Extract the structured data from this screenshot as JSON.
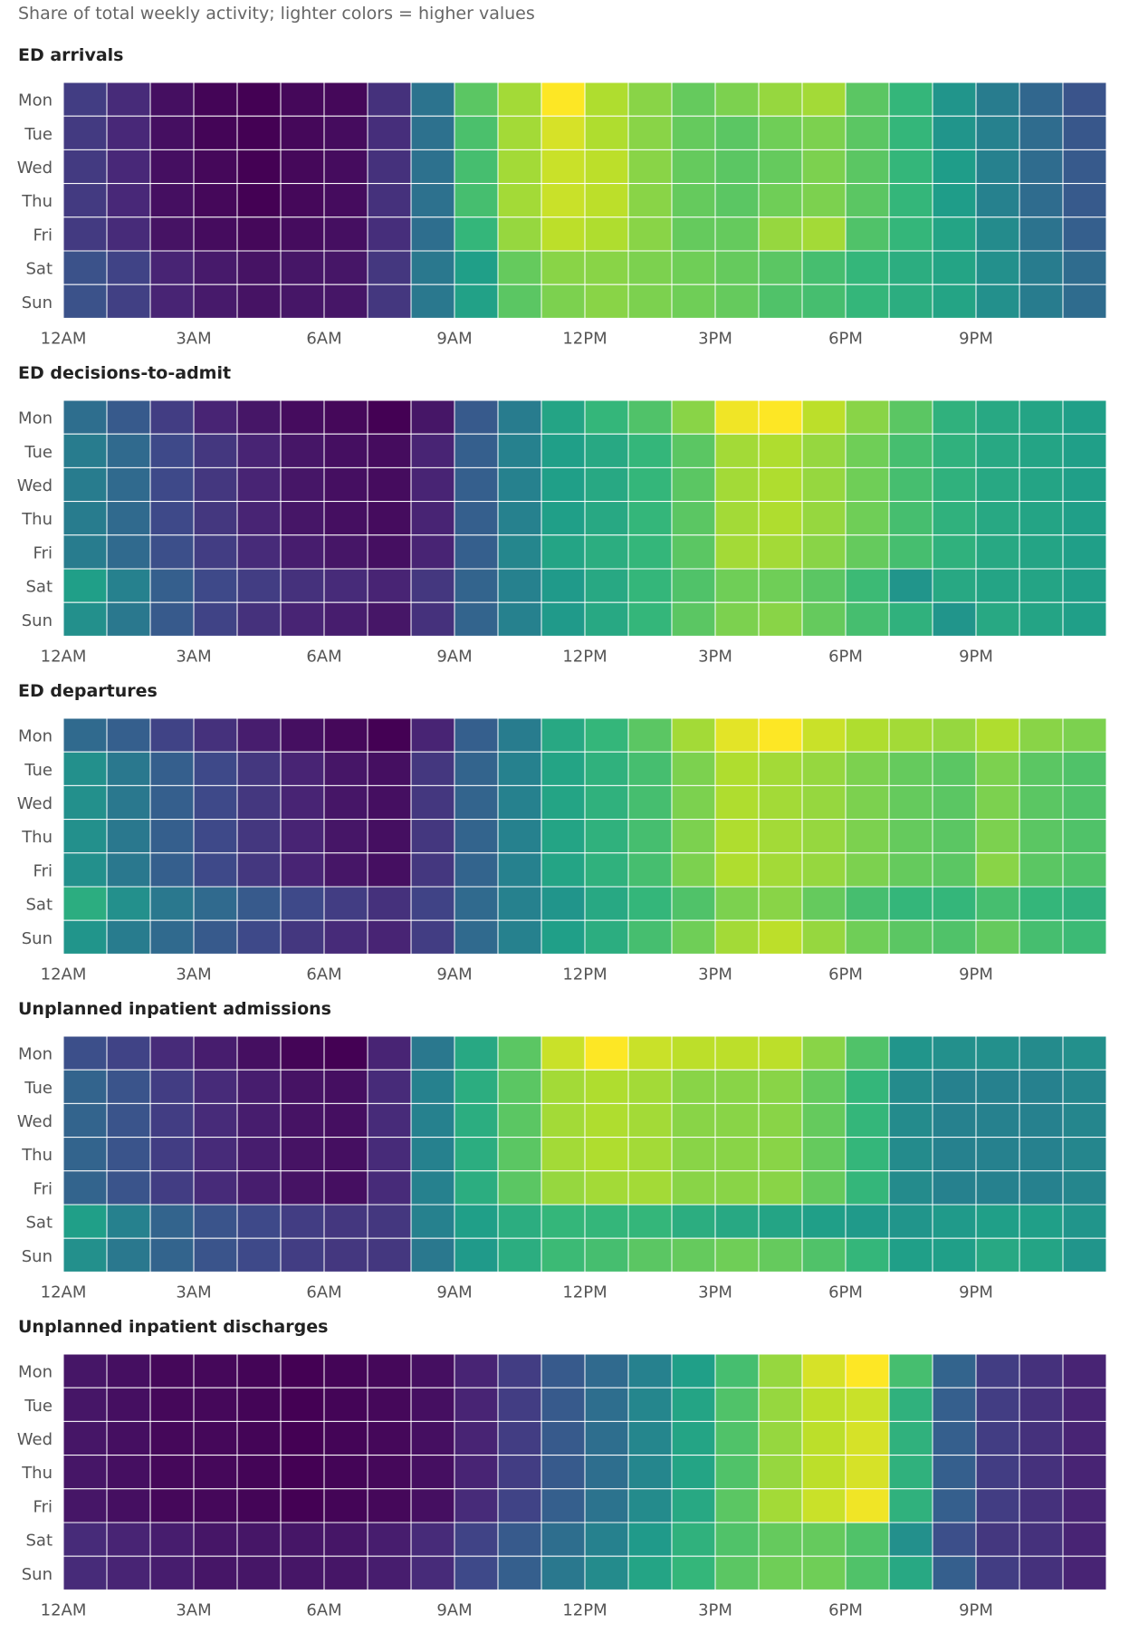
{
  "subtitle": "Share of total weekly activity; lighter colors = higher values",
  "color_scale": {
    "name": "viridis",
    "stops": [
      "#440154",
      "#482878",
      "#3e4a89",
      "#31688e",
      "#26828e",
      "#1f9e89",
      "#35b779",
      "#6ece58",
      "#b5de2b",
      "#fde725"
    ]
  },
  "chart_data": [
    {
      "type": "heatmap",
      "title": "ED arrivals",
      "y": [
        "Mon",
        "Tue",
        "Wed",
        "Thu",
        "Fri",
        "Sat",
        "Sun"
      ],
      "x_tick_labels": [
        "12AM",
        "3AM",
        "6AM",
        "9AM",
        "12PM",
        "3PM",
        "6PM",
        "9PM"
      ],
      "x_tick_hours": [
        0,
        3,
        6,
        9,
        12,
        15,
        18,
        21
      ],
      "values": [
        [
          0.18,
          0.12,
          0.04,
          0.01,
          0.0,
          0.02,
          0.02,
          0.14,
          0.38,
          0.74,
          0.86,
          1.0,
          0.88,
          0.82,
          0.76,
          0.8,
          0.84,
          0.86,
          0.74,
          0.66,
          0.52,
          0.42,
          0.33,
          0.26
        ],
        [
          0.17,
          0.11,
          0.04,
          0.01,
          0.0,
          0.02,
          0.03,
          0.13,
          0.37,
          0.71,
          0.86,
          0.94,
          0.88,
          0.82,
          0.76,
          0.74,
          0.78,
          0.8,
          0.74,
          0.66,
          0.52,
          0.44,
          0.35,
          0.27
        ],
        [
          0.17,
          0.11,
          0.04,
          0.02,
          0.0,
          0.02,
          0.03,
          0.14,
          0.37,
          0.7,
          0.86,
          0.92,
          0.9,
          0.82,
          0.76,
          0.74,
          0.76,
          0.8,
          0.74,
          0.66,
          0.55,
          0.44,
          0.35,
          0.28
        ],
        [
          0.17,
          0.11,
          0.04,
          0.02,
          0.0,
          0.02,
          0.03,
          0.14,
          0.37,
          0.7,
          0.86,
          0.92,
          0.9,
          0.82,
          0.76,
          0.74,
          0.78,
          0.8,
          0.74,
          0.66,
          0.55,
          0.44,
          0.35,
          0.28
        ],
        [
          0.17,
          0.12,
          0.05,
          0.03,
          0.02,
          0.03,
          0.04,
          0.13,
          0.36,
          0.66,
          0.84,
          0.9,
          0.88,
          0.82,
          0.76,
          0.76,
          0.84,
          0.86,
          0.72,
          0.66,
          0.58,
          0.48,
          0.38,
          0.3
        ],
        [
          0.25,
          0.2,
          0.1,
          0.07,
          0.05,
          0.06,
          0.06,
          0.16,
          0.4,
          0.56,
          0.76,
          0.82,
          0.82,
          0.8,
          0.78,
          0.76,
          0.74,
          0.7,
          0.66,
          0.62,
          0.58,
          0.5,
          0.42,
          0.35
        ],
        [
          0.25,
          0.19,
          0.1,
          0.07,
          0.05,
          0.06,
          0.06,
          0.16,
          0.4,
          0.57,
          0.74,
          0.8,
          0.82,
          0.8,
          0.78,
          0.76,
          0.72,
          0.7,
          0.66,
          0.62,
          0.58,
          0.5,
          0.42,
          0.35
        ]
      ]
    },
    {
      "type": "heatmap",
      "title": "ED decisions-to-admit",
      "y": [
        "Mon",
        "Tue",
        "Wed",
        "Thu",
        "Fri",
        "Sat",
        "Sun"
      ],
      "x_tick_labels": [
        "12AM",
        "3AM",
        "6AM",
        "9AM",
        "12PM",
        "3PM",
        "6PM",
        "9PM"
      ],
      "x_tick_hours": [
        0,
        3,
        6,
        9,
        12,
        15,
        18,
        21
      ],
      "values": [
        [
          0.36,
          0.28,
          0.18,
          0.1,
          0.06,
          0.03,
          0.02,
          0.0,
          0.06,
          0.28,
          0.42,
          0.58,
          0.66,
          0.72,
          0.82,
          0.98,
          1.0,
          0.9,
          0.82,
          0.74,
          0.64,
          0.6,
          0.58,
          0.56
        ],
        [
          0.42,
          0.34,
          0.22,
          0.16,
          0.1,
          0.06,
          0.04,
          0.03,
          0.1,
          0.3,
          0.44,
          0.56,
          0.6,
          0.66,
          0.74,
          0.86,
          0.88,
          0.84,
          0.78,
          0.7,
          0.64,
          0.6,
          0.58,
          0.56
        ],
        [
          0.42,
          0.34,
          0.22,
          0.16,
          0.1,
          0.06,
          0.04,
          0.03,
          0.1,
          0.3,
          0.44,
          0.56,
          0.6,
          0.66,
          0.74,
          0.86,
          0.88,
          0.84,
          0.78,
          0.7,
          0.64,
          0.6,
          0.58,
          0.56
        ],
        [
          0.42,
          0.34,
          0.22,
          0.16,
          0.1,
          0.06,
          0.04,
          0.03,
          0.1,
          0.3,
          0.44,
          0.56,
          0.6,
          0.66,
          0.74,
          0.86,
          0.88,
          0.84,
          0.78,
          0.7,
          0.64,
          0.6,
          0.58,
          0.56
        ],
        [
          0.42,
          0.34,
          0.24,
          0.18,
          0.12,
          0.08,
          0.06,
          0.04,
          0.1,
          0.3,
          0.46,
          0.58,
          0.62,
          0.66,
          0.74,
          0.86,
          0.86,
          0.82,
          0.76,
          0.7,
          0.64,
          0.6,
          0.58,
          0.56
        ],
        [
          0.56,
          0.44,
          0.3,
          0.22,
          0.18,
          0.14,
          0.12,
          0.1,
          0.16,
          0.32,
          0.44,
          0.54,
          0.6,
          0.66,
          0.72,
          0.78,
          0.78,
          0.74,
          0.68,
          0.52,
          0.6,
          0.58,
          0.58,
          0.56
        ],
        [
          0.5,
          0.4,
          0.28,
          0.2,
          0.14,
          0.1,
          0.08,
          0.06,
          0.14,
          0.32,
          0.44,
          0.54,
          0.6,
          0.66,
          0.74,
          0.8,
          0.82,
          0.76,
          0.7,
          0.64,
          0.52,
          0.6,
          0.58,
          0.56
        ]
      ]
    },
    {
      "type": "heatmap",
      "title": "ED departures",
      "y": [
        "Mon",
        "Tue",
        "Wed",
        "Thu",
        "Fri",
        "Sat",
        "Sun"
      ],
      "x_tick_labels": [
        "12AM",
        "3AM",
        "6AM",
        "9AM",
        "12PM",
        "3PM",
        "6PM",
        "9PM"
      ],
      "x_tick_hours": [
        0,
        3,
        6,
        9,
        12,
        15,
        18,
        21
      ],
      "values": [
        [
          0.34,
          0.3,
          0.2,
          0.14,
          0.08,
          0.04,
          0.02,
          0.0,
          0.1,
          0.3,
          0.42,
          0.6,
          0.66,
          0.74,
          0.86,
          0.96,
          1.0,
          0.92,
          0.88,
          0.86,
          0.84,
          0.88,
          0.82,
          0.8
        ],
        [
          0.5,
          0.4,
          0.3,
          0.22,
          0.16,
          0.1,
          0.06,
          0.04,
          0.16,
          0.32,
          0.44,
          0.58,
          0.64,
          0.7,
          0.8,
          0.88,
          0.86,
          0.84,
          0.8,
          0.76,
          0.74,
          0.8,
          0.74,
          0.72
        ],
        [
          0.5,
          0.4,
          0.3,
          0.22,
          0.16,
          0.1,
          0.06,
          0.04,
          0.16,
          0.32,
          0.44,
          0.58,
          0.64,
          0.7,
          0.8,
          0.88,
          0.86,
          0.84,
          0.8,
          0.76,
          0.74,
          0.8,
          0.74,
          0.72
        ],
        [
          0.5,
          0.4,
          0.3,
          0.22,
          0.16,
          0.1,
          0.06,
          0.04,
          0.16,
          0.32,
          0.44,
          0.58,
          0.64,
          0.7,
          0.8,
          0.88,
          0.86,
          0.84,
          0.8,
          0.76,
          0.74,
          0.8,
          0.74,
          0.72
        ],
        [
          0.5,
          0.4,
          0.3,
          0.22,
          0.16,
          0.1,
          0.06,
          0.04,
          0.16,
          0.32,
          0.44,
          0.58,
          0.64,
          0.7,
          0.8,
          0.88,
          0.86,
          0.84,
          0.8,
          0.76,
          0.74,
          0.82,
          0.74,
          0.72
        ],
        [
          0.62,
          0.5,
          0.4,
          0.34,
          0.28,
          0.22,
          0.18,
          0.14,
          0.2,
          0.34,
          0.44,
          0.52,
          0.6,
          0.66,
          0.72,
          0.8,
          0.82,
          0.76,
          0.7,
          0.66,
          0.66,
          0.7,
          0.66,
          0.64
        ],
        [
          0.52,
          0.42,
          0.34,
          0.28,
          0.22,
          0.16,
          0.12,
          0.1,
          0.18,
          0.34,
          0.44,
          0.56,
          0.62,
          0.7,
          0.78,
          0.86,
          0.9,
          0.84,
          0.78,
          0.74,
          0.72,
          0.76,
          0.7,
          0.68
        ]
      ]
    },
    {
      "type": "heatmap",
      "title": "Unplanned inpatient admissions",
      "y": [
        "Mon",
        "Tue",
        "Wed",
        "Thu",
        "Fri",
        "Sat",
        "Sun"
      ],
      "x_tick_labels": [
        "12AM",
        "3AM",
        "6AM",
        "9AM",
        "12PM",
        "3PM",
        "6PM",
        "9PM"
      ],
      "x_tick_hours": [
        0,
        3,
        6,
        9,
        12,
        15,
        18,
        21
      ],
      "values": [
        [
          0.24,
          0.2,
          0.12,
          0.08,
          0.04,
          0.01,
          0.0,
          0.1,
          0.4,
          0.6,
          0.74,
          0.92,
          1.0,
          0.92,
          0.9,
          0.9,
          0.9,
          0.82,
          0.72,
          0.52,
          0.5,
          0.5,
          0.48,
          0.5
        ],
        [
          0.32,
          0.26,
          0.18,
          0.12,
          0.08,
          0.05,
          0.04,
          0.12,
          0.44,
          0.62,
          0.74,
          0.86,
          0.88,
          0.86,
          0.82,
          0.82,
          0.82,
          0.76,
          0.66,
          0.48,
          0.44,
          0.44,
          0.44,
          0.46
        ],
        [
          0.32,
          0.26,
          0.18,
          0.12,
          0.08,
          0.05,
          0.04,
          0.12,
          0.44,
          0.62,
          0.74,
          0.86,
          0.88,
          0.86,
          0.82,
          0.82,
          0.82,
          0.76,
          0.66,
          0.48,
          0.44,
          0.44,
          0.44,
          0.46
        ],
        [
          0.32,
          0.26,
          0.18,
          0.12,
          0.08,
          0.05,
          0.04,
          0.12,
          0.44,
          0.62,
          0.74,
          0.86,
          0.88,
          0.86,
          0.82,
          0.82,
          0.82,
          0.76,
          0.66,
          0.48,
          0.44,
          0.44,
          0.44,
          0.46
        ],
        [
          0.32,
          0.26,
          0.18,
          0.12,
          0.08,
          0.05,
          0.04,
          0.12,
          0.44,
          0.62,
          0.74,
          0.84,
          0.86,
          0.86,
          0.82,
          0.82,
          0.82,
          0.76,
          0.66,
          0.48,
          0.44,
          0.44,
          0.44,
          0.46
        ],
        [
          0.56,
          0.44,
          0.32,
          0.26,
          0.22,
          0.18,
          0.16,
          0.16,
          0.44,
          0.56,
          0.62,
          0.66,
          0.66,
          0.66,
          0.62,
          0.6,
          0.58,
          0.56,
          0.54,
          0.52,
          0.54,
          0.56,
          0.56,
          0.52
        ],
        [
          0.5,
          0.4,
          0.32,
          0.26,
          0.22,
          0.18,
          0.16,
          0.16,
          0.4,
          0.54,
          0.62,
          0.68,
          0.7,
          0.74,
          0.76,
          0.78,
          0.76,
          0.72,
          0.66,
          0.56,
          0.56,
          0.6,
          0.58,
          0.52
        ]
      ]
    },
    {
      "type": "heatmap",
      "title": "Unplanned inpatient discharges",
      "y": [
        "Mon",
        "Tue",
        "Wed",
        "Thu",
        "Fri",
        "Sat",
        "Sun"
      ],
      "x_tick_labels": [
        "12AM",
        "3AM",
        "6AM",
        "9AM",
        "12PM",
        "3PM",
        "6PM",
        "9PM"
      ],
      "x_tick_hours": [
        0,
        3,
        6,
        9,
        12,
        15,
        18,
        21
      ],
      "values": [
        [
          0.06,
          0.04,
          0.02,
          0.02,
          0.01,
          0.0,
          0.01,
          0.02,
          0.04,
          0.1,
          0.18,
          0.28,
          0.34,
          0.44,
          0.56,
          0.7,
          0.84,
          0.94,
          1.0,
          0.7,
          0.32,
          0.18,
          0.14,
          0.1
        ],
        [
          0.06,
          0.04,
          0.02,
          0.02,
          0.01,
          0.0,
          0.01,
          0.02,
          0.04,
          0.1,
          0.18,
          0.28,
          0.36,
          0.46,
          0.58,
          0.72,
          0.84,
          0.9,
          0.92,
          0.64,
          0.3,
          0.18,
          0.14,
          0.1
        ],
        [
          0.06,
          0.04,
          0.02,
          0.02,
          0.01,
          0.0,
          0.01,
          0.02,
          0.04,
          0.1,
          0.18,
          0.28,
          0.36,
          0.46,
          0.58,
          0.72,
          0.84,
          0.9,
          0.94,
          0.64,
          0.3,
          0.18,
          0.14,
          0.1
        ],
        [
          0.06,
          0.04,
          0.02,
          0.02,
          0.01,
          0.0,
          0.01,
          0.02,
          0.04,
          0.1,
          0.18,
          0.28,
          0.36,
          0.46,
          0.58,
          0.72,
          0.84,
          0.9,
          0.94,
          0.64,
          0.3,
          0.18,
          0.14,
          0.1
        ],
        [
          0.06,
          0.04,
          0.02,
          0.02,
          0.01,
          0.0,
          0.01,
          0.02,
          0.04,
          0.12,
          0.2,
          0.3,
          0.38,
          0.48,
          0.6,
          0.74,
          0.86,
          0.92,
          0.98,
          0.64,
          0.3,
          0.18,
          0.14,
          0.1
        ],
        [
          0.12,
          0.1,
          0.08,
          0.06,
          0.06,
          0.06,
          0.06,
          0.08,
          0.12,
          0.2,
          0.28,
          0.36,
          0.44,
          0.54,
          0.64,
          0.72,
          0.76,
          0.76,
          0.72,
          0.5,
          0.24,
          0.16,
          0.14,
          0.1
        ],
        [
          0.12,
          0.1,
          0.08,
          0.06,
          0.06,
          0.06,
          0.06,
          0.08,
          0.12,
          0.22,
          0.3,
          0.4,
          0.48,
          0.58,
          0.66,
          0.74,
          0.78,
          0.78,
          0.72,
          0.6,
          0.3,
          0.18,
          0.14,
          0.1
        ]
      ]
    }
  ]
}
